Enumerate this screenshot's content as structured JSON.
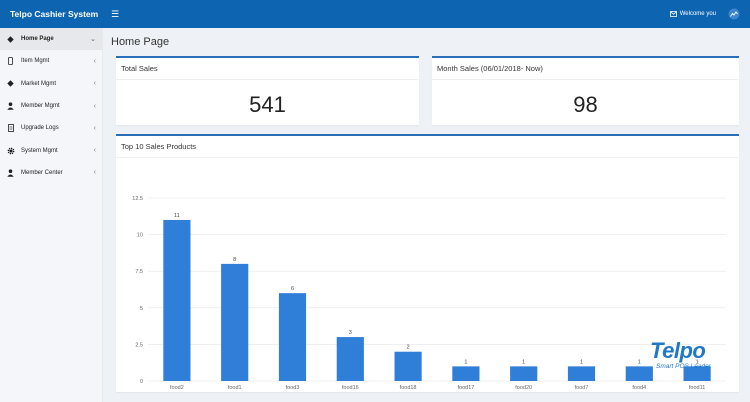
{
  "header": {
    "app_title": "Telpo Cashier System",
    "menu_icon": "hamburger-icon",
    "welcome_text": "Welcome you",
    "welcome_icon": "mail-icon",
    "avatar_icon": "user-avatar-icon"
  },
  "sidebar": {
    "items": [
      {
        "label": "Home Page",
        "icon": "home-icon",
        "arrow": "⌄",
        "active": true
      },
      {
        "label": "Item Mgmt",
        "icon": "phone-icon",
        "arrow": "‹",
        "active": false
      },
      {
        "label": "Market Mgmt",
        "icon": "diamond-icon",
        "arrow": "‹",
        "active": false
      },
      {
        "label": "Member Mgmt",
        "icon": "person-icon",
        "arrow": "‹",
        "active": false
      },
      {
        "label": "Upgrade Logs",
        "icon": "document-icon",
        "arrow": "‹",
        "active": false
      },
      {
        "label": "System Mgmt",
        "icon": "gear-icon",
        "arrow": "‹",
        "active": false
      },
      {
        "label": "Member Center",
        "icon": "person-icon",
        "arrow": "‹",
        "active": false
      }
    ]
  },
  "main": {
    "page_title": "Home Page",
    "total_sales": {
      "title": "Total Sales",
      "value": "541"
    },
    "month_sales": {
      "title": "Month Sales (06/01/2018- Now)",
      "value": "98"
    },
    "top_products": {
      "title": "Top 10 Sales Products"
    }
  },
  "colors": {
    "header_bg": "#0d64b1",
    "bar": "#2f7ed8",
    "card_accent": "#2a6fb7"
  },
  "watermark": {
    "logo": "Telpo",
    "tagline": "Smart POS Leader"
  },
  "chart_data": {
    "type": "bar",
    "title": "Top 10 Sales Products",
    "categories": [
      "food2",
      "food1",
      "food3",
      "food16",
      "food18",
      "food17",
      "food20",
      "food7",
      "food4",
      "food11"
    ],
    "values": [
      11,
      8,
      6,
      3,
      2,
      1,
      1,
      1,
      1,
      1
    ],
    "ylim": [
      0,
      12.5
    ],
    "yticks": [
      "0",
      "2.5",
      "5",
      "7.5",
      "10",
      "12.5"
    ],
    "data_labels": true,
    "grid": true,
    "legend": "none"
  }
}
